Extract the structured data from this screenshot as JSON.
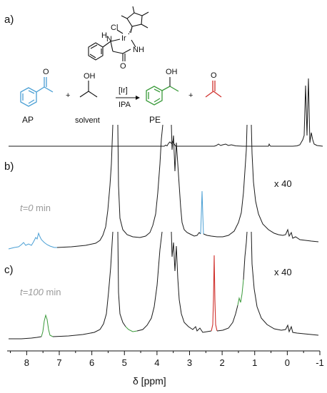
{
  "panels": {
    "a": "a)",
    "b": "b)",
    "c": "c)"
  },
  "scheme": {
    "reactant_label": "AP",
    "cosolvent_label": "solvent",
    "product_label": "PE",
    "catalyst_label": "[Ir]",
    "condition_label": "IPA",
    "plus": "+",
    "atoms": {
      "cl": "Cl",
      "ir": "Ir",
      "n": "N",
      "nh": "NH",
      "o": "O",
      "oh": "OH",
      "h": "H"
    }
  },
  "spectra": {
    "b_time_prefix": "t=0",
    "b_time_unit": " min",
    "c_time_prefix": "t=100",
    "c_time_unit": " min",
    "scale_b": "x 40",
    "scale_c": "x 40"
  },
  "axis": {
    "title": "δ  [ppm]",
    "ticks": [
      "8",
      "7",
      "6",
      "5",
      "4",
      "3",
      "2",
      "1",
      "0",
      "-1"
    ],
    "range": [
      8.6,
      -1.0
    ]
  },
  "colors": {
    "acetophenone": "#4a9fd4",
    "phenylethanol": "#3a9a3a",
    "acetone": "#d0312d",
    "trace": "#1a1a1a",
    "time_label": "#9a9a9a"
  }
}
